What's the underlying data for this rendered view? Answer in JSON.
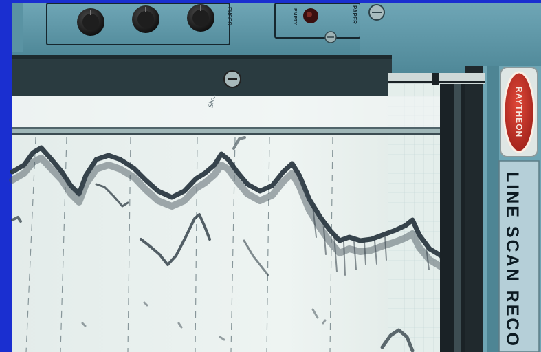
{
  "device": {
    "brand_logo": "RAYTHEON",
    "label": "LINE SCAN RECO",
    "panel_labels": {
      "fuses": "FUSES",
      "paper": "PAPER",
      "empty": "EMPTY"
    },
    "chart_note": "Sho..."
  },
  "colors": {
    "background": "#1a2fd0",
    "instrument_body": "#5d97a8",
    "paper": "#e9f1ee",
    "trace": "#26333a",
    "logo_red": "#c8322a"
  },
  "icons": [
    "knob-icon",
    "indicator-lamp-icon",
    "screw-icon",
    "raytheon-logo-icon"
  ]
}
